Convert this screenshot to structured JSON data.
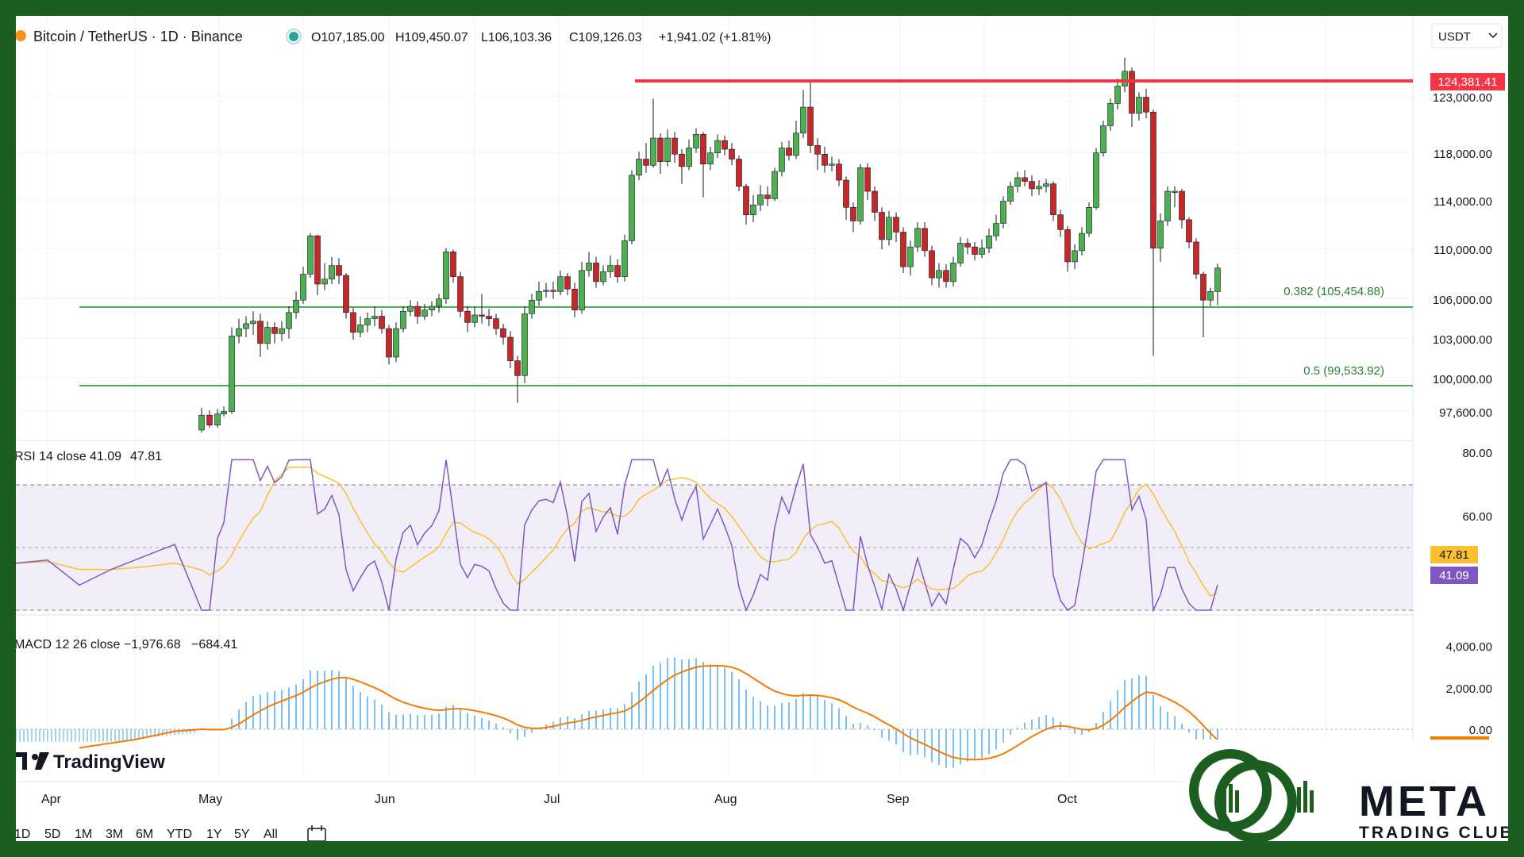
{
  "header": {
    "symbol": "Bitcoin / TetherUS · 1D · Binance",
    "open": "O107,185.00",
    "high": "H109,450.07",
    "low": "L106,103.36",
    "close": "C109,126.03",
    "change": "+1,941.02 (+1.81%)",
    "currency": "USDT"
  },
  "price_axis": {
    "ticks": [
      "123,000.00",
      "118,000.00",
      "114,000.00",
      "110,000.00",
      "106,000.00",
      "103,000.00",
      "100,000.00",
      "97,600.00"
    ],
    "resistance_label": "124,381.41"
  },
  "fib_levels": [
    {
      "label": "0.382 (105,454.88)",
      "value": 105454.88
    },
    {
      "label": "0.5 (99,533.92)",
      "value": 99533.92
    }
  ],
  "rsi": {
    "title": "RSI 14 close",
    "value": "41.09",
    "ma_value": "47.81",
    "ticks": [
      "80.00",
      "60.00"
    ]
  },
  "macd": {
    "title": "MACD 12 26 close",
    "macd_value": "−1,976.68",
    "signal_value": "−684.41",
    "ticks": [
      "4,000.00",
      "2,000.00",
      "0.00"
    ]
  },
  "months": [
    "Apr",
    "May",
    "Jun",
    "Jul",
    "Aug",
    "Sep",
    "Oct"
  ],
  "ranges": [
    "1D",
    "5D",
    "1M",
    "3M",
    "6M",
    "YTD",
    "1Y",
    "5Y",
    "All"
  ],
  "branding": {
    "tradingview": "TradingView",
    "brand_name": "META",
    "brand_sub": "TRADING CLUB"
  },
  "colors": {
    "up": "#26a69a",
    "up_body": "#4caf50",
    "down": "#ef5350",
    "down_body": "#c62828",
    "resistance": "#f23645",
    "fib": "#4caf50",
    "rsi": "#7e57c2",
    "rsi_ma": "#fbc02d",
    "macd": "#1e88e5",
    "signal": "#ff6d00",
    "brand": "#1b5e20"
  },
  "chart_data": {
    "type": "candlestick",
    "resistance": 124381.41,
    "support_levels": [
      105454.88,
      99533.92
    ],
    "candles": [
      {
        "x": 234,
        "o": 96000,
        "c": 97200,
        "h": 97800,
        "l": 95800
      },
      {
        "x": 244,
        "o": 97200,
        "c": 96400,
        "h": 97600,
        "l": 96200
      },
      {
        "x": 254,
        "o": 96400,
        "c": 97300,
        "h": 97700,
        "l": 96200
      },
      {
        "x": 262,
        "o": 97300,
        "c": 97500,
        "h": 97900,
        "l": 97100
      },
      {
        "x": 272,
        "o": 97500,
        "c": 103600,
        "h": 104300,
        "l": 97300
      },
      {
        "x": 281,
        "o": 103600,
        "c": 104200,
        "h": 105000,
        "l": 103000
      },
      {
        "x": 290,
        "o": 104200,
        "c": 104600,
        "h": 105200,
        "l": 103500
      },
      {
        "x": 299,
        "o": 104600,
        "c": 104800,
        "h": 105600,
        "l": 103700
      },
      {
        "x": 308,
        "o": 104800,
        "c": 103000,
        "h": 105400,
        "l": 101900
      },
      {
        "x": 317,
        "o": 103000,
        "c": 104300,
        "h": 104800,
        "l": 102500
      },
      {
        "x": 326,
        "o": 104300,
        "c": 103800,
        "h": 104700,
        "l": 103000
      },
      {
        "x": 335,
        "o": 103800,
        "c": 104200,
        "h": 104800,
        "l": 103200
      },
      {
        "x": 344,
        "o": 104200,
        "c": 105500,
        "h": 106000,
        "l": 103400
      },
      {
        "x": 353,
        "o": 105500,
        "c": 106500,
        "h": 107200,
        "l": 105000
      },
      {
        "x": 362,
        "o": 106500,
        "c": 108600,
        "h": 109200,
        "l": 106200
      },
      {
        "x": 371,
        "o": 108600,
        "c": 111700,
        "h": 111900,
        "l": 108300
      },
      {
        "x": 380,
        "o": 111700,
        "c": 107800,
        "h": 111800,
        "l": 106900
      },
      {
        "x": 389,
        "o": 107800,
        "c": 108200,
        "h": 109500,
        "l": 107300
      },
      {
        "x": 398,
        "o": 108200,
        "c": 109300,
        "h": 110000,
        "l": 107800
      },
      {
        "x": 407,
        "o": 109300,
        "c": 108500,
        "h": 109900,
        "l": 107800
      },
      {
        "x": 416,
        "o": 108500,
        "c": 105500,
        "h": 108700,
        "l": 105000
      },
      {
        "x": 425,
        "o": 105500,
        "c": 103900,
        "h": 105900,
        "l": 103300
      },
      {
        "x": 434,
        "o": 103900,
        "c": 104500,
        "h": 105200,
        "l": 103500
      },
      {
        "x": 443,
        "o": 104500,
        "c": 105000,
        "h": 105500,
        "l": 103900
      },
      {
        "x": 452,
        "o": 105000,
        "c": 105200,
        "h": 106000,
        "l": 104400
      },
      {
        "x": 461,
        "o": 105200,
        "c": 104200,
        "h": 105700,
        "l": 103800
      },
      {
        "x": 470,
        "o": 104200,
        "c": 101900,
        "h": 104500,
        "l": 101300
      },
      {
        "x": 479,
        "o": 101900,
        "c": 104200,
        "h": 104700,
        "l": 101500
      },
      {
        "x": 488,
        "o": 104200,
        "c": 105600,
        "h": 106000,
        "l": 103900
      },
      {
        "x": 497,
        "o": 105600,
        "c": 106000,
        "h": 106500,
        "l": 105200
      },
      {
        "x": 506,
        "o": 106000,
        "c": 105200,
        "h": 106400,
        "l": 104600
      },
      {
        "x": 515,
        "o": 105200,
        "c": 105700,
        "h": 106200,
        "l": 104900
      },
      {
        "x": 524,
        "o": 105700,
        "c": 106000,
        "h": 106400,
        "l": 105200
      },
      {
        "x": 533,
        "o": 106000,
        "c": 106600,
        "h": 107000,
        "l": 105500
      },
      {
        "x": 542,
        "o": 106600,
        "c": 110400,
        "h": 110700,
        "l": 106200
      },
      {
        "x": 551,
        "o": 110400,
        "c": 108400,
        "h": 110600,
        "l": 107900
      },
      {
        "x": 560,
        "o": 108400,
        "c": 105600,
        "h": 108800,
        "l": 105100
      },
      {
        "x": 569,
        "o": 105600,
        "c": 104700,
        "h": 106000,
        "l": 103900
      },
      {
        "x": 578,
        "o": 104700,
        "c": 105300,
        "h": 106000,
        "l": 104300
      },
      {
        "x": 587,
        "o": 105300,
        "c": 105200,
        "h": 107000,
        "l": 104600
      },
      {
        "x": 596,
        "o": 105200,
        "c": 105000,
        "h": 105800,
        "l": 104400
      },
      {
        "x": 605,
        "o": 105000,
        "c": 104200,
        "h": 105400,
        "l": 103700
      },
      {
        "x": 614,
        "o": 104200,
        "c": 103500,
        "h": 104600,
        "l": 102900
      },
      {
        "x": 623,
        "o": 103500,
        "c": 101600,
        "h": 104000,
        "l": 101000
      },
      {
        "x": 632,
        "o": 101600,
        "c": 100400,
        "h": 102000,
        "l": 98200
      },
      {
        "x": 641,
        "o": 100400,
        "c": 105400,
        "h": 106000,
        "l": 99800
      },
      {
        "x": 650,
        "o": 105400,
        "c": 106500,
        "h": 107000,
        "l": 105000
      },
      {
        "x": 659,
        "o": 106500,
        "c": 107200,
        "h": 108000,
        "l": 106000
      },
      {
        "x": 668,
        "o": 107200,
        "c": 107300,
        "h": 107900,
        "l": 106700
      },
      {
        "x": 677,
        "o": 107300,
        "c": 107200,
        "h": 108000,
        "l": 106600
      },
      {
        "x": 686,
        "o": 107200,
        "c": 108400,
        "h": 108900,
        "l": 106900
      },
      {
        "x": 695,
        "o": 108400,
        "c": 107400,
        "h": 108700,
        "l": 106900
      },
      {
        "x": 704,
        "o": 107400,
        "c": 105700,
        "h": 107900,
        "l": 105100
      },
      {
        "x": 713,
        "o": 105700,
        "c": 108900,
        "h": 109600,
        "l": 105400
      },
      {
        "x": 722,
        "o": 108900,
        "c": 109500,
        "h": 110400,
        "l": 108400
      },
      {
        "x": 731,
        "o": 109500,
        "c": 108000,
        "h": 110000,
        "l": 107500
      },
      {
        "x": 740,
        "o": 108000,
        "c": 108800,
        "h": 109300,
        "l": 107700
      },
      {
        "x": 749,
        "o": 108800,
        "c": 109300,
        "h": 110100,
        "l": 108300
      },
      {
        "x": 758,
        "o": 109300,
        "c": 108400,
        "h": 109800,
        "l": 107900
      },
      {
        "x": 767,
        "o": 108400,
        "c": 111300,
        "h": 111800,
        "l": 108000
      },
      {
        "x": 776,
        "o": 111300,
        "c": 116600,
        "h": 117000,
        "l": 111000
      },
      {
        "x": 785,
        "o": 116600,
        "c": 117900,
        "h": 118500,
        "l": 116200
      },
      {
        "x": 794,
        "o": 117900,
        "c": 117400,
        "h": 119200,
        "l": 116800
      },
      {
        "x": 803,
        "o": 117400,
        "c": 119600,
        "h": 122800,
        "l": 117200
      },
      {
        "x": 812,
        "o": 119600,
        "c": 117700,
        "h": 120000,
        "l": 116700
      },
      {
        "x": 821,
        "o": 117700,
        "c": 119600,
        "h": 120300,
        "l": 117300
      },
      {
        "x": 830,
        "o": 119600,
        "c": 118300,
        "h": 120100,
        "l": 117600
      },
      {
        "x": 839,
        "o": 118300,
        "c": 117300,
        "h": 118700,
        "l": 115900
      },
      {
        "x": 848,
        "o": 117300,
        "c": 118800,
        "h": 119500,
        "l": 117000
      },
      {
        "x": 857,
        "o": 118800,
        "c": 119900,
        "h": 120400,
        "l": 118400
      },
      {
        "x": 866,
        "o": 119900,
        "c": 117500,
        "h": 120100,
        "l": 114800
      },
      {
        "x": 875,
        "o": 117500,
        "c": 118400,
        "h": 118900,
        "l": 117000
      },
      {
        "x": 884,
        "o": 118400,
        "c": 119400,
        "h": 119900,
        "l": 118000
      },
      {
        "x": 893,
        "o": 119400,
        "c": 118700,
        "h": 119800,
        "l": 118200
      },
      {
        "x": 902,
        "o": 118700,
        "c": 117900,
        "h": 119200,
        "l": 117400
      },
      {
        "x": 911,
        "o": 117900,
        "c": 115700,
        "h": 118200,
        "l": 115300
      },
      {
        "x": 920,
        "o": 115700,
        "c": 113400,
        "h": 115900,
        "l": 112600
      },
      {
        "x": 929,
        "o": 113400,
        "c": 114200,
        "h": 115000,
        "l": 112800
      },
      {
        "x": 938,
        "o": 114200,
        "c": 115000,
        "h": 115800,
        "l": 113700
      },
      {
        "x": 947,
        "o": 115000,
        "c": 114700,
        "h": 115700,
        "l": 114100
      },
      {
        "x": 956,
        "o": 114700,
        "c": 116900,
        "h": 117200,
        "l": 114500
      },
      {
        "x": 965,
        "o": 116900,
        "c": 118800,
        "h": 119300,
        "l": 116500
      },
      {
        "x": 974,
        "o": 118800,
        "c": 118200,
        "h": 119400,
        "l": 117800
      },
      {
        "x": 983,
        "o": 118200,
        "c": 120000,
        "h": 121000,
        "l": 117900
      },
      {
        "x": 992,
        "o": 120000,
        "c": 122100,
        "h": 123500,
        "l": 119600
      },
      {
        "x": 1001,
        "o": 122100,
        "c": 119000,
        "h": 124300,
        "l": 118400
      },
      {
        "x": 1010,
        "o": 119000,
        "c": 118300,
        "h": 119600,
        "l": 117000
      },
      {
        "x": 1019,
        "o": 118300,
        "c": 117400,
        "h": 118900,
        "l": 116800
      },
      {
        "x": 1028,
        "o": 117400,
        "c": 117500,
        "h": 118100,
        "l": 116900
      },
      {
        "x": 1037,
        "o": 117500,
        "c": 116200,
        "h": 117900,
        "l": 115700
      },
      {
        "x": 1046,
        "o": 116200,
        "c": 114000,
        "h": 116500,
        "l": 113000
      },
      {
        "x": 1055,
        "o": 114000,
        "c": 112900,
        "h": 114400,
        "l": 112000
      },
      {
        "x": 1064,
        "o": 112900,
        "c": 117200,
        "h": 117500,
        "l": 112600
      },
      {
        "x": 1073,
        "o": 117200,
        "c": 115300,
        "h": 117600,
        "l": 114600
      },
      {
        "x": 1082,
        "o": 115300,
        "c": 113600,
        "h": 115700,
        "l": 112900
      },
      {
        "x": 1091,
        "o": 113600,
        "c": 111400,
        "h": 114000,
        "l": 110600
      },
      {
        "x": 1100,
        "o": 111400,
        "c": 113200,
        "h": 113700,
        "l": 110900
      },
      {
        "x": 1109,
        "o": 113200,
        "c": 112000,
        "h": 113600,
        "l": 111200
      },
      {
        "x": 1118,
        "o": 112000,
        "c": 109200,
        "h": 112400,
        "l": 108700
      },
      {
        "x": 1127,
        "o": 109200,
        "c": 110800,
        "h": 111300,
        "l": 108500
      },
      {
        "x": 1136,
        "o": 110800,
        "c": 112300,
        "h": 112800,
        "l": 110400
      },
      {
        "x": 1145,
        "o": 112300,
        "c": 110500,
        "h": 112800,
        "l": 110000
      },
      {
        "x": 1154,
        "o": 110500,
        "c": 108300,
        "h": 110900,
        "l": 107700
      },
      {
        "x": 1163,
        "o": 108300,
        "c": 108900,
        "h": 109500,
        "l": 107500
      },
      {
        "x": 1172,
        "o": 108900,
        "c": 108000,
        "h": 109400,
        "l": 107500
      },
      {
        "x": 1181,
        "o": 108000,
        "c": 109500,
        "h": 110000,
        "l": 107600
      },
      {
        "x": 1190,
        "o": 109500,
        "c": 111100,
        "h": 111600,
        "l": 109200
      },
      {
        "x": 1199,
        "o": 111100,
        "c": 110800,
        "h": 111500,
        "l": 110200
      },
      {
        "x": 1208,
        "o": 110800,
        "c": 110200,
        "h": 111200,
        "l": 109700
      },
      {
        "x": 1217,
        "o": 110200,
        "c": 110700,
        "h": 111400,
        "l": 109900
      },
      {
        "x": 1226,
        "o": 110700,
        "c": 111700,
        "h": 112300,
        "l": 110300
      },
      {
        "x": 1235,
        "o": 111700,
        "c": 112700,
        "h": 113400,
        "l": 111300
      },
      {
        "x": 1244,
        "o": 112700,
        "c": 114500,
        "h": 114900,
        "l": 112300
      },
      {
        "x": 1253,
        "o": 114500,
        "c": 115700,
        "h": 116100,
        "l": 114200
      },
      {
        "x": 1262,
        "o": 115700,
        "c": 116400,
        "h": 116900,
        "l": 115200
      },
      {
        "x": 1271,
        "o": 116400,
        "c": 116100,
        "h": 117000,
        "l": 115700
      },
      {
        "x": 1280,
        "o": 116100,
        "c": 115500,
        "h": 116600,
        "l": 114900
      },
      {
        "x": 1289,
        "o": 115500,
        "c": 115700,
        "h": 116200,
        "l": 115000
      },
      {
        "x": 1298,
        "o": 115700,
        "c": 115900,
        "h": 116300,
        "l": 115200
      },
      {
        "x": 1307,
        "o": 115900,
        "c": 113400,
        "h": 116100,
        "l": 112900
      },
      {
        "x": 1316,
        "o": 113400,
        "c": 112200,
        "h": 113800,
        "l": 111600
      },
      {
        "x": 1325,
        "o": 112200,
        "c": 109600,
        "h": 112500,
        "l": 108800
      },
      {
        "x": 1334,
        "o": 109600,
        "c": 110500,
        "h": 111000,
        "l": 109000
      },
      {
        "x": 1343,
        "o": 110500,
        "c": 111900,
        "h": 112400,
        "l": 110100
      },
      {
        "x": 1352,
        "o": 111900,
        "c": 114000,
        "h": 114400,
        "l": 111600
      },
      {
        "x": 1361,
        "o": 114000,
        "c": 118400,
        "h": 118800,
        "l": 113800
      },
      {
        "x": 1370,
        "o": 118400,
        "c": 120600,
        "h": 121000,
        "l": 118100
      },
      {
        "x": 1379,
        "o": 120600,
        "c": 122400,
        "h": 122800,
        "l": 120200
      },
      {
        "x": 1388,
        "o": 122400,
        "c": 123800,
        "h": 124400,
        "l": 121900
      },
      {
        "x": 1397,
        "o": 123800,
        "c": 125000,
        "h": 126100,
        "l": 123300
      },
      {
        "x": 1406,
        "o": 125000,
        "c": 121600,
        "h": 125300,
        "l": 120500
      },
      {
        "x": 1415,
        "o": 121600,
        "c": 122900,
        "h": 123300,
        "l": 121000
      },
      {
        "x": 1424,
        "o": 122900,
        "c": 121700,
        "h": 123600,
        "l": 121200
      },
      {
        "x": 1433,
        "o": 121700,
        "c": 110700,
        "h": 121900,
        "l": 102000
      },
      {
        "x": 1442,
        "o": 110700,
        "c": 112900,
        "h": 113500,
        "l": 109600
      },
      {
        "x": 1451,
        "o": 112900,
        "c": 115300,
        "h": 115700,
        "l": 112500
      },
      {
        "x": 1460,
        "o": 115300,
        "c": 115300,
        "h": 115700,
        "l": 114000
      },
      {
        "x": 1469,
        "o": 115300,
        "c": 113000,
        "h": 115500,
        "l": 112300
      },
      {
        "x": 1478,
        "o": 113000,
        "c": 111200,
        "h": 113200,
        "l": 110700
      },
      {
        "x": 1487,
        "o": 111200,
        "c": 108600,
        "h": 111500,
        "l": 108200
      },
      {
        "x": 1496,
        "o": 108600,
        "c": 106500,
        "h": 108800,
        "l": 103500
      },
      {
        "x": 1505,
        "o": 106500,
        "c": 107200,
        "h": 107500,
        "l": 106000
      },
      {
        "x": 1514,
        "o": 107200,
        "c": 109100,
        "h": 109450,
        "l": 106100
      }
    ]
  }
}
